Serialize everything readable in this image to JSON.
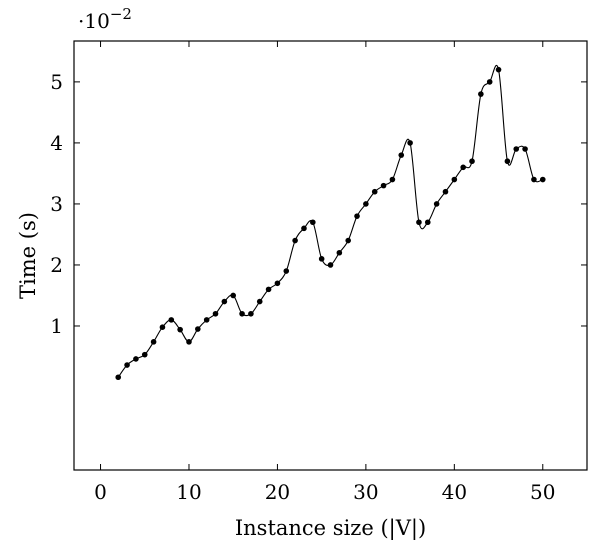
{
  "chart_data": {
    "type": "line",
    "xlabel": "Instance size (|V|)",
    "ylabel": "Time (s)",
    "y_scale_note": "·10^-2",
    "y_scale_base": "·10",
    "y_scale_exp": "−2",
    "xlim": [
      -3,
      55
    ],
    "ylim": [
      -0.0136,
      0.0567
    ],
    "x_ticks": [
      0,
      10,
      20,
      30,
      40,
      50
    ],
    "x_tick_labels": [
      "0",
      "10",
      "20",
      "30",
      "40",
      "50"
    ],
    "y_ticks": [
      0.01,
      0.02,
      0.03,
      0.04,
      0.05
    ],
    "y_tick_labels": [
      "1",
      "2",
      "3",
      "4",
      "5"
    ],
    "grid": false,
    "legend": "none",
    "series": [
      {
        "color": "#000000",
        "x": [
          2,
          3,
          4,
          5,
          6,
          7,
          8,
          9,
          10,
          11,
          12,
          13,
          14,
          15,
          16,
          17,
          18,
          19,
          20,
          21,
          22,
          23,
          24,
          25,
          26,
          27,
          28,
          29,
          30,
          31,
          32,
          33,
          34,
          35,
          36,
          37,
          38,
          39,
          40,
          41,
          42,
          43,
          44,
          45,
          46,
          47,
          48,
          49,
          50
        ],
        "y": [
          0.0016,
          0.0036,
          0.0046,
          0.0053,
          0.0074,
          0.0098,
          0.011,
          0.0094,
          0.0074,
          0.0095,
          0.011,
          0.012,
          0.014,
          0.015,
          0.012,
          0.012,
          0.014,
          0.016,
          0.017,
          0.019,
          0.024,
          0.026,
          0.027,
          0.021,
          0.02,
          0.022,
          0.024,
          0.028,
          0.03,
          0.032,
          0.033,
          0.034,
          0.038,
          0.04,
          0.027,
          0.027,
          0.03,
          0.032,
          0.034,
          0.036,
          0.037,
          0.048,
          0.05,
          0.052,
          0.037,
          0.039,
          0.039,
          0.034,
          0.034
        ]
      }
    ]
  }
}
